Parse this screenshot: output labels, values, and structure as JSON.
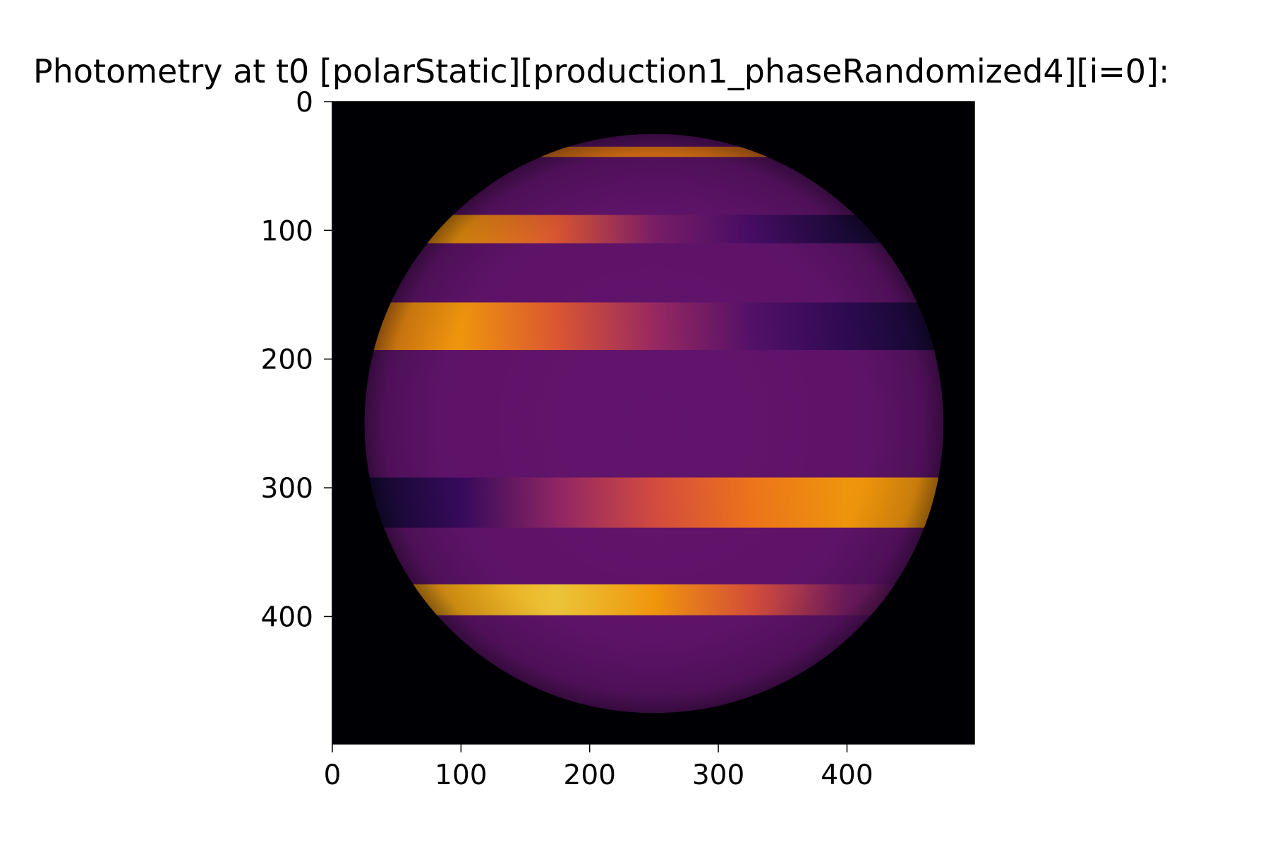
{
  "chart_data": {
    "type": "heatmap",
    "title": "Photometry at t0 [polarStatic][production1_phaseRandomized4][i=0]:",
    "xlabel": "",
    "ylabel": "",
    "xlim": [
      0,
      499
    ],
    "ylim": [
      499,
      0
    ],
    "xticks": [
      "0",
      "100",
      "200",
      "300",
      "400"
    ],
    "yticks": [
      "0",
      "100",
      "200",
      "300",
      "400"
    ],
    "colormap": "inferno",
    "background_color": "#000004",
    "disk": {
      "center": [
        250,
        250
      ],
      "radius": 225,
      "base_value": 0.28
    },
    "bands": [
      {
        "y_top": 35,
        "y_bottom": 43,
        "values": [
          0.72,
          0.72
        ]
      },
      {
        "y_top": 88,
        "y_bottom": 110,
        "values": [
          0.74,
          0.78,
          0.62,
          0.35,
          0.22,
          0.12,
          0.1
        ]
      },
      {
        "y_top": 156,
        "y_bottom": 193,
        "values": [
          0.74,
          0.78,
          0.62,
          0.42,
          0.25,
          0.16,
          0.1
        ]
      },
      {
        "y_top": 292,
        "y_bottom": 331,
        "values": [
          0.1,
          0.18,
          0.4,
          0.58,
          0.7,
          0.78,
          0.78
        ]
      },
      {
        "y_top": 375,
        "y_bottom": 399,
        "values": [
          0.75,
          0.82,
          0.88,
          0.78,
          0.6,
          0.35,
          0.28
        ]
      }
    ]
  }
}
